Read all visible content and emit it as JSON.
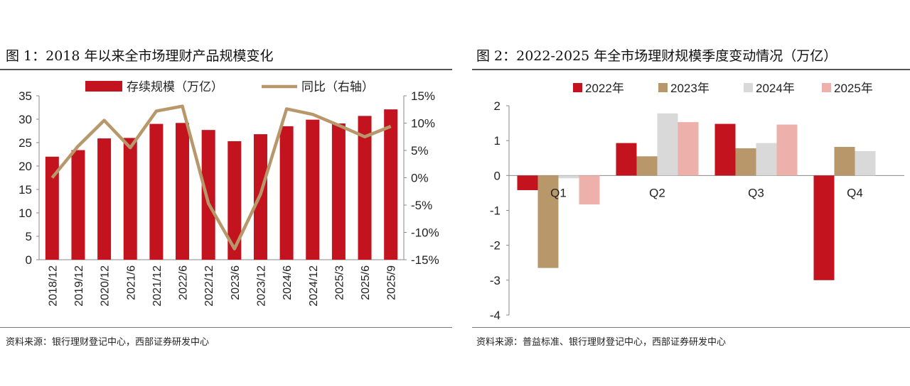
{
  "left": {
    "title": "图 1：2018 年以来全市场理财产品规模变化",
    "source": "资料来源：银行理财登记中心，西部证券研发中心"
  },
  "right": {
    "title": "图 2：2022-2025 年全市场理财规模季度变动情况（万亿）",
    "source": "资料来源：普益标准、银行理财登记中心，西部证券研发中心"
  },
  "colors": {
    "bar_red": "#C3131F",
    "line_tan": "#B8976B",
    "c2022": "#C3131F",
    "c2023": "#B8976B",
    "c2024": "#D9D9D9",
    "c2025": "#EDB0AA"
  },
  "chart_data": [
    {
      "type": "bar",
      "title": "图 1：2018 年以来全市场理财产品规模变化",
      "categories": [
        "2018/12",
        "2019/12",
        "2020/12",
        "2021/6",
        "2021/12",
        "2022/6",
        "2022/12",
        "2023/6",
        "2023/12",
        "2024/6",
        "2024/12",
        "2025/3",
        "2025/6",
        "2025/9"
      ],
      "series": [
        {
          "name": "存续规模（万亿）",
          "axis": "left",
          "type": "bar",
          "values": [
            22.0,
            23.4,
            25.9,
            26.0,
            29.0,
            29.2,
            27.7,
            25.3,
            26.8,
            28.5,
            29.9,
            29.1,
            30.7,
            32.1
          ]
        },
        {
          "name": "同比（右轴）",
          "axis": "right",
          "type": "line",
          "values": [
            0.0,
            5.8,
            10.5,
            5.5,
            12.2,
            13.1,
            -4.7,
            -13.0,
            -3.0,
            12.6,
            11.6,
            9.6,
            7.5,
            9.4
          ]
        }
      ],
      "yticks_left": [
        "0",
        "5",
        "10",
        "15",
        "20",
        "25",
        "30",
        "35"
      ],
      "ylim_left": [
        0,
        35
      ],
      "yticks_right": [
        "-15%",
        "-10%",
        "-5%",
        "0%",
        "5%",
        "10%",
        "15%"
      ],
      "ylim_right": [
        -15,
        15
      ],
      "legend": "top-center"
    },
    {
      "type": "bar",
      "title": "图 2：2022-2025 年全市场理财规模季度变动情况（万亿）",
      "categories": [
        "Q1",
        "Q2",
        "Q3",
        "Q4"
      ],
      "series": [
        {
          "name": "2022年",
          "values": [
            -0.42,
            0.93,
            1.48,
            -3.0
          ]
        },
        {
          "name": "2023年",
          "values": [
            -2.65,
            0.55,
            0.78,
            0.82
          ]
        },
        {
          "name": "2024年",
          "values": [
            -0.08,
            1.78,
            0.93,
            0.7
          ]
        },
        {
          "name": "2025年",
          "values": [
            -0.83,
            1.53,
            1.46,
            null
          ]
        }
      ],
      "yticks": [
        "-4",
        "-3",
        "-2",
        "-1",
        "0",
        "1",
        "2"
      ],
      "ylim": [
        -4,
        2
      ],
      "legend": "top-center"
    }
  ]
}
